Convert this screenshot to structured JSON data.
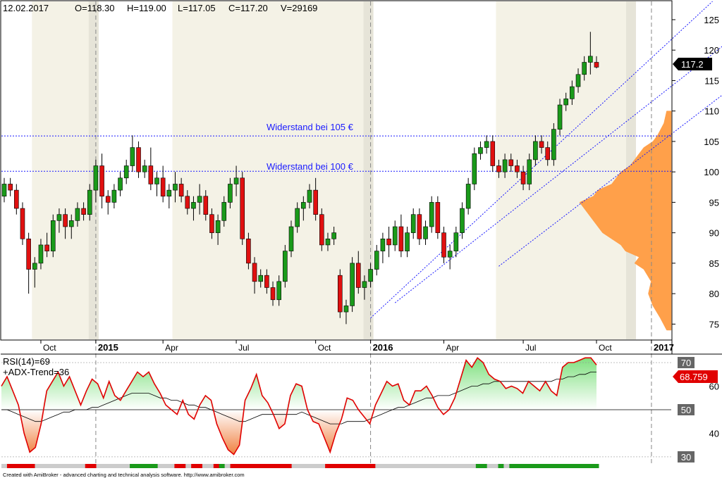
{
  "header": {
    "date": "12.02.2017",
    "open": "O=118.30",
    "high": "H=119.00",
    "low": "L=117.05",
    "close": "C=117.20",
    "volume": "V=29169"
  },
  "footer": {
    "credit": "Created with AmiBroker - advanced charting and technical analysis software. http://www.amibroker.com"
  },
  "indicator": {
    "rsi_label": "RSI(14)=69",
    "adx_label": "+ADX-Trend=36",
    "rsi_value_label": "68.759",
    "ylim": [
      27,
      73
    ],
    "ticks": [
      30,
      40,
      50,
      60,
      70
    ],
    "boxed_ticks": [
      30,
      50,
      70
    ],
    "rsi": [
      60,
      64,
      58,
      52,
      40,
      32,
      34,
      44,
      58,
      62,
      66,
      60,
      64,
      58,
      52,
      58,
      63,
      61,
      55,
      62,
      56,
      54,
      58,
      62,
      66,
      64,
      66,
      61,
      57,
      52,
      50,
      48,
      54,
      48,
      46,
      52,
      56,
      54,
      44,
      38,
      33,
      31,
      35,
      54,
      59,
      65,
      56,
      53,
      48,
      42,
      44,
      56,
      61,
      60,
      50,
      45,
      44,
      38,
      32,
      40,
      46,
      55,
      54,
      50,
      47,
      44,
      52,
      57,
      62,
      60,
      61,
      54,
      52,
      58,
      58,
      60,
      56,
      51,
      48,
      50,
      55,
      63,
      71,
      68,
      72,
      70,
      65,
      63,
      62,
      59,
      60,
      59,
      57,
      62,
      60,
      58,
      62,
      58,
      56,
      68,
      70,
      70,
      71,
      72,
      72,
      69
    ],
    "rsi_ma": [
      50,
      50,
      49,
      48,
      47,
      46,
      45,
      45,
      46,
      47,
      48,
      49,
      49,
      50,
      50,
      50,
      51,
      51,
      52,
      53,
      54,
      55,
      56,
      57,
      57,
      57,
      57,
      56,
      55,
      55,
      54,
      54,
      53,
      52,
      52,
      51,
      51,
      50,
      49,
      48,
      47,
      46,
      45,
      45,
      46,
      47,
      48,
      48,
      48,
      48,
      48,
      48,
      48,
      49,
      48,
      47,
      46,
      45,
      44,
      44,
      44,
      45,
      45,
      45,
      45,
      46,
      47,
      48,
      49,
      50,
      51,
      51,
      52,
      53,
      54,
      55,
      55,
      56,
      56,
      56,
      57,
      58,
      59,
      60,
      60,
      61,
      61,
      62,
      62,
      62,
      62,
      62,
      62,
      62,
      62,
      62,
      62,
      62,
      63,
      63,
      64,
      64,
      65,
      65,
      66,
      66
    ],
    "adx_trend": [
      "g",
      "r",
      "r",
      "r",
      "r",
      "r",
      "g",
      "g",
      "g",
      "g",
      "g",
      "g",
      "g",
      "g",
      "g",
      "r",
      "r",
      "g",
      "g",
      "g",
      "g",
      "g",
      "g",
      "v",
      "v",
      "v",
      "v",
      "v",
      "g",
      "g",
      "g",
      "r",
      "r",
      "g",
      "r",
      "r",
      "g",
      "g",
      "r",
      "v",
      "g",
      "r",
      "r",
      "r",
      "r",
      "r",
      "r",
      "r",
      "r",
      "r",
      "r",
      "r",
      "g",
      "g",
      "g",
      "g",
      "g",
      "g",
      "r",
      "r",
      "r",
      "r",
      "r",
      "r",
      "r",
      "r",
      "r",
      "g",
      "g",
      "g",
      "g",
      "g",
      "g",
      "g",
      "g",
      "g",
      "g",
      "g",
      "g",
      "g",
      "g",
      "g",
      "g",
      "g",
      "g",
      "v",
      "v",
      "g",
      "g",
      "v",
      "g",
      "v",
      "v",
      "v",
      "v",
      "v",
      "v",
      "v",
      "v",
      "v",
      "v",
      "v",
      "v",
      "v",
      "v",
      "v",
      "v"
    ]
  },
  "chart_data": {
    "type": "candlestick",
    "title": "",
    "ylim": [
      72.5,
      128
    ],
    "y_ticks": [
      75,
      80,
      85,
      90,
      95,
      100,
      105,
      110,
      115,
      120,
      125
    ],
    "last_price_label": "117.2",
    "x_tick_labels": [
      {
        "label": "Oct",
        "bar": 6,
        "bold": false,
        "divider": false
      },
      {
        "label": "2015",
        "bar": 15,
        "bold": true,
        "divider": true
      },
      {
        "label": "Apr",
        "bar": 26,
        "bold": false,
        "divider": false
      },
      {
        "label": "Jul",
        "bar": 38,
        "bold": false,
        "divider": false
      },
      {
        "label": "Oct",
        "bar": 51,
        "bold": false,
        "divider": false
      },
      {
        "label": "2016",
        "bar": 60,
        "bold": true,
        "divider": true
      },
      {
        "label": "Apr",
        "bar": 72,
        "bold": false,
        "divider": false
      },
      {
        "label": "Jul",
        "bar": 85,
        "bold": false,
        "divider": false
      },
      {
        "label": "Oct",
        "bar": 97,
        "bold": false,
        "divider": false
      },
      {
        "label": "2017",
        "bar": 106,
        "bold": true,
        "divider": true
      }
    ],
    "annotations": [
      {
        "label": "Widerstand bei 105 €",
        "y": 105.9
      },
      {
        "label": "Widerstand bei 100 €",
        "y": 100.1
      }
    ],
    "trend_channel": [
      {
        "x1": 60,
        "y1": 76.0,
        "x2": 116,
        "y2": 128
      },
      {
        "x1": 64,
        "y1": 78.5,
        "x2": 120,
        "y2": 122.5
      },
      {
        "x1": 81,
        "y1": 84.5,
        "x2": 122,
        "y2": 116
      }
    ],
    "shaded_ranges": [
      [
        5,
        15
      ],
      [
        28,
        60
      ],
      [
        81,
        103
      ]
    ],
    "volume_profile": [
      [
        74,
        0.05
      ],
      [
        76,
        0.12
      ],
      [
        78,
        0.2
      ],
      [
        80,
        0.25
      ],
      [
        82,
        0.22
      ],
      [
        84,
        0.3
      ],
      [
        85,
        0.4
      ],
      [
        86,
        0.35
      ],
      [
        87,
        0.5
      ],
      [
        88,
        0.55
      ],
      [
        89,
        0.65
      ],
      [
        90,
        0.75
      ],
      [
        91,
        0.8
      ],
      [
        92,
        0.85
      ],
      [
        93,
        0.9
      ],
      [
        94,
        0.95
      ],
      [
        95,
        1.0
      ],
      [
        96,
        0.85
      ],
      [
        97,
        0.8
      ],
      [
        98,
        0.65
      ],
      [
        99,
        0.6
      ],
      [
        100,
        0.55
      ],
      [
        101,
        0.45
      ],
      [
        102,
        0.4
      ],
      [
        103,
        0.35
      ],
      [
        104,
        0.3
      ],
      [
        105,
        0.2
      ],
      [
        106,
        0.15
      ],
      [
        108,
        0.08
      ],
      [
        110,
        0.05
      ]
    ],
    "candles": [
      [
        96,
        99,
        95,
        98
      ],
      [
        98,
        99,
        96,
        97
      ],
      [
        97,
        98,
        93,
        94
      ],
      [
        94,
        95,
        88,
        89
      ],
      [
        89,
        90,
        80,
        84
      ],
      [
        84,
        86,
        81,
        85
      ],
      [
        85,
        89,
        84,
        88
      ],
      [
        88,
        90,
        86,
        87
      ],
      [
        87,
        93,
        86,
        92
      ],
      [
        92,
        94,
        90,
        93
      ],
      [
        93,
        94,
        89,
        91
      ],
      [
        91,
        93,
        89,
        92
      ],
      [
        92,
        95,
        91,
        94
      ],
      [
        94,
        95,
        92,
        93
      ],
      [
        93,
        98,
        92,
        97
      ],
      [
        97,
        102,
        95,
        101
      ],
      [
        101,
        103,
        94,
        96
      ],
      [
        96,
        97,
        93,
        95
      ],
      [
        95,
        98,
        94,
        97
      ],
      [
        97,
        100,
        96,
        99
      ],
      [
        99,
        102,
        98,
        101
      ],
      [
        101,
        106,
        100,
        104
      ],
      [
        104,
        105,
        99,
        100
      ],
      [
        100,
        102,
        99,
        101
      ],
      [
        101,
        104,
        97,
        98
      ],
      [
        98,
        100,
        96,
        99
      ],
      [
        99,
        101,
        95,
        96
      ],
      [
        96,
        98,
        94,
        97
      ],
      [
        97,
        100,
        95,
        98
      ],
      [
        98,
        99,
        95,
        96
      ],
      [
        96,
        97,
        93,
        94
      ],
      [
        94,
        96,
        92,
        95
      ],
      [
        95,
        98,
        93,
        96
      ],
      [
        96,
        97,
        92,
        93
      ],
      [
        93,
        94,
        89,
        90
      ],
      [
        90,
        93,
        88,
        92
      ],
      [
        92,
        96,
        91,
        95
      ],
      [
        95,
        99,
        94,
        98
      ],
      [
        98,
        101,
        96,
        99
      ],
      [
        99,
        100,
        88,
        89
      ],
      [
        89,
        90,
        84,
        85
      ],
      [
        85,
        86,
        80,
        82
      ],
      [
        82,
        84,
        81,
        83
      ],
      [
        83,
        84,
        80,
        81
      ],
      [
        81,
        82,
        78,
        79
      ],
      [
        79,
        83,
        78,
        82
      ],
      [
        82,
        88,
        81,
        87
      ],
      [
        87,
        92,
        86,
        91
      ],
      [
        91,
        95,
        90,
        94
      ],
      [
        94,
        96,
        92,
        95
      ],
      [
        95,
        98,
        94,
        97
      ],
      [
        97,
        99,
        92,
        93
      ],
      [
        93,
        94,
        87,
        88
      ],
      [
        88,
        90,
        87,
        89
      ],
      [
        89,
        91,
        88,
        90
      ],
      [
        83,
        84,
        76,
        77
      ],
      [
        77,
        79,
        75,
        78
      ],
      [
        78,
        86,
        77,
        85
      ],
      [
        85,
        87,
        80,
        81
      ],
      [
        81,
        83,
        79,
        82
      ],
      [
        82,
        85,
        81,
        84
      ],
      [
        84,
        88,
        83,
        87
      ],
      [
        87,
        90,
        85,
        89
      ],
      [
        89,
        91,
        86,
        88
      ],
      [
        88,
        92,
        87,
        91
      ],
      [
        91,
        93,
        86,
        87
      ],
      [
        87,
        91,
        86,
        90
      ],
      [
        90,
        94,
        89,
        93
      ],
      [
        93,
        94,
        88,
        89
      ],
      [
        89,
        92,
        88,
        91
      ],
      [
        91,
        96,
        90,
        95
      ],
      [
        95,
        96,
        89,
        90
      ],
      [
        90,
        91,
        85,
        86
      ],
      [
        86,
        88,
        84,
        87
      ],
      [
        87,
        91,
        86,
        90
      ],
      [
        90,
        95,
        89,
        94
      ],
      [
        94,
        99,
        93,
        98
      ],
      [
        98,
        104,
        97,
        103
      ],
      [
        103,
        105,
        102,
        104
      ],
      [
        104,
        106,
        103,
        105
      ],
      [
        105,
        106,
        100,
        101
      ],
      [
        101,
        102,
        99,
        100
      ],
      [
        100,
        103,
        99,
        102
      ],
      [
        102,
        103,
        100,
        101
      ],
      [
        101,
        102,
        99,
        100
      ],
      [
        100,
        101,
        97,
        98
      ],
      [
        98,
        103,
        97,
        102
      ],
      [
        102,
        106,
        101,
        105
      ],
      [
        105,
        106,
        103,
        104
      ],
      [
        104,
        105,
        101,
        102
      ],
      [
        102,
        108,
        101,
        107
      ],
      [
        107,
        112,
        106,
        111
      ],
      [
        111,
        113,
        110,
        112
      ],
      [
        112,
        115,
        111,
        114
      ],
      [
        114,
        117,
        113,
        116
      ],
      [
        116,
        119,
        115,
        118
      ],
      [
        118,
        123,
        116,
        119
      ],
      [
        118,
        119,
        117,
        117.2
      ]
    ]
  }
}
